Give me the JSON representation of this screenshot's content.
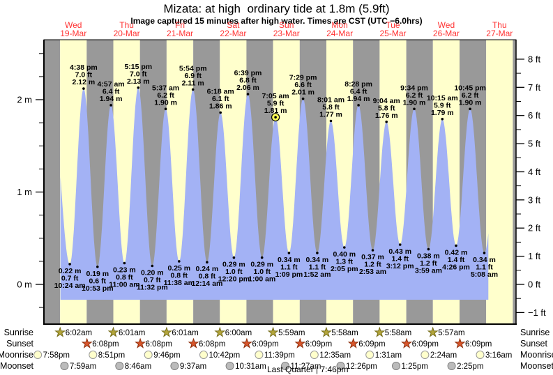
{
  "title": "Mizata: at high  ordinary tide at 1.8m (5.9ft)",
  "subtitle": "Image captured 15 minutes after high water. Times are CST (UTC −6.0hrs)",
  "chart_data": {
    "type": "area",
    "title": "Mizata: at high  ordinary tide at 1.8m (5.9ft)",
    "ylabel_left": "m",
    "ylabel_right": "ft",
    "ylim_m": [
      -0.42,
      2.65
    ],
    "grid": false,
    "legend": "none",
    "days": [
      {
        "dow": "Wed",
        "date": "19-Mar"
      },
      {
        "dow": "Thu",
        "date": "20-Mar"
      },
      {
        "dow": "Fri",
        "date": "21-Mar"
      },
      {
        "dow": "Sat",
        "date": "22-Mar"
      },
      {
        "dow": "Sun",
        "date": "23-Mar"
      },
      {
        "dow": "Mon",
        "date": "24-Mar"
      },
      {
        "dow": "Tue",
        "date": "25-Mar"
      },
      {
        "dow": "Wed",
        "date": "26-Mar"
      },
      {
        "dow": "Thu",
        "date": "27-Mar"
      }
    ],
    "highs": [
      {
        "time": "4:38 pm",
        "ft": "7.0",
        "m": "2.12",
        "day": 0
      },
      {
        "time": "4:57 am",
        "ft": "6.4",
        "m": "1.94",
        "day": 1
      },
      {
        "time": "5:15 pm",
        "ft": "7.0",
        "m": "2.13",
        "day": 1
      },
      {
        "time": "5:37 am",
        "ft": "6.2",
        "m": "1.90",
        "day": 2
      },
      {
        "time": "5:54 pm",
        "ft": "6.9",
        "m": "2.11",
        "day": 2
      },
      {
        "time": "6:18 am",
        "ft": "6.1",
        "m": "1.86",
        "day": 3
      },
      {
        "time": "6:39 pm",
        "ft": "6.8",
        "m": "2.06",
        "day": 3
      },
      {
        "time": "7:05 am",
        "ft": "5.9",
        "m": "1.81",
        "day": 4,
        "current": true
      },
      {
        "time": "7:29 pm",
        "ft": "6.6",
        "m": "2.01",
        "day": 4
      },
      {
        "time": "8:01 am",
        "ft": "5.8",
        "m": "1.77",
        "day": 5
      },
      {
        "time": "8:28 pm",
        "ft": "6.4",
        "m": "1.94",
        "day": 5
      },
      {
        "time": "9:04 am",
        "ft": "5.8",
        "m": "1.76",
        "day": 6
      },
      {
        "time": "9:34 pm",
        "ft": "6.2",
        "m": "1.90",
        "day": 6
      },
      {
        "time": "10:15 am",
        "ft": "5.9",
        "m": "1.79",
        "day": 7
      },
      {
        "time": "10:45 pm",
        "ft": "6.2",
        "m": "1.90",
        "day": 7
      }
    ],
    "lows": [
      {
        "m": "0.22",
        "ft": "0.7",
        "time": "10:24 am",
        "day": 0
      },
      {
        "m": "0.19",
        "ft": "0.6",
        "time": "10:53 pm",
        "day": 0
      },
      {
        "m": "0.23",
        "ft": "0.8",
        "time": "11:00 am",
        "day": 1
      },
      {
        "m": "0.20",
        "ft": "0.7",
        "time": "11:32 pm",
        "day": 1
      },
      {
        "m": "0.25",
        "ft": "0.8",
        "time": "11:38 am",
        "day": 2
      },
      {
        "m": "0.24",
        "ft": "0.8",
        "time": "12:14 am",
        "day": 3
      },
      {
        "m": "0.29",
        "ft": "1.0",
        "time": "12:20 pm",
        "day": 3
      },
      {
        "m": "0.29",
        "ft": "1.0",
        "time": "1:00 am",
        "day": 4
      },
      {
        "m": "0.34",
        "ft": "1.1",
        "time": "1:09 pm",
        "day": 4
      },
      {
        "m": "0.34",
        "ft": "1.1",
        "time": "1:52 am",
        "day": 5
      },
      {
        "m": "0.40",
        "ft": "1.3",
        "time": "2:05 pm",
        "day": 5
      },
      {
        "m": "0.37",
        "ft": "1.2",
        "time": "2:53 am",
        "day": 6
      },
      {
        "m": "0.43",
        "ft": "1.4",
        "time": "3:12 pm",
        "day": 6
      },
      {
        "m": "0.38",
        "ft": "1.2",
        "time": "3:59 am",
        "day": 7
      },
      {
        "m": "0.42",
        "ft": "1.4",
        "time": "4:26 pm",
        "day": 7
      },
      {
        "m": "0.34",
        "ft": "1.1",
        "time": "5:08 am",
        "day": 8
      }
    ],
    "left_ticks": [
      {
        "v": 0,
        "label": "0 m"
      },
      {
        "v": 1,
        "label": "1 m"
      },
      {
        "v": 2,
        "label": "2 m"
      }
    ],
    "right_ticks": [
      {
        "v": 8,
        "label": "8 ft"
      },
      {
        "v": 7,
        "label": "7 ft"
      },
      {
        "v": 6,
        "label": "6 ft"
      },
      {
        "v": 5,
        "label": "5 ft"
      },
      {
        "v": 4,
        "label": "4 ft"
      },
      {
        "v": 3,
        "label": "3 ft"
      },
      {
        "v": 2,
        "label": "2 ft"
      },
      {
        "v": 1,
        "label": "1 ft"
      },
      {
        "v": 0,
        "label": "0 ft"
      },
      {
        "v": -1,
        "label": "−1 ft"
      }
    ],
    "colors": {
      "day_band": "#ffffcc",
      "night_band": "#999999",
      "tide_fill": "#a3b2f5",
      "day_label_red": "#ff3232",
      "current_marker": "#ffff55",
      "sunrise_star": "#b3a53b",
      "sunrise_star_stroke": "#756d1b",
      "sunset_star": "#d8552b",
      "sunset_star_stroke": "#8c2e0b",
      "moonrise_circle": "#ffffcc",
      "moonrise_circle_stroke": "#999999",
      "moonset_circle": "#bbbbbb",
      "moonset_circle_stroke": "#808080"
    }
  },
  "footer": {
    "rows": [
      {
        "label": "Sunrise",
        "icon": "star",
        "entries": [
          {
            "time": "6:02am",
            "day": 0
          },
          {
            "time": "6:01am",
            "day": 1
          },
          {
            "time": "6:01am",
            "day": 2
          },
          {
            "time": "6:00am",
            "day": 3
          },
          {
            "time": "5:59am",
            "day": 4
          },
          {
            "time": "5:58am",
            "day": 5
          },
          {
            "time": "5:58am",
            "day": 6
          },
          {
            "time": "5:57am",
            "day": 7
          }
        ]
      },
      {
        "label": "Sunset",
        "icon": "star",
        "entries": [
          {
            "time": "6:08pm",
            "day": 0
          },
          {
            "time": "6:08pm",
            "day": 1
          },
          {
            "time": "6:08pm",
            "day": 2
          },
          {
            "time": "6:09pm",
            "day": 3
          },
          {
            "time": "6:09pm",
            "day": 4
          },
          {
            "time": "6:09pm",
            "day": 5
          },
          {
            "time": "6:09pm",
            "day": 6
          },
          {
            "time": "6:09pm",
            "day": 7
          }
        ]
      },
      {
        "label": "Moonrise",
        "icon": "circle",
        "entries": [
          {
            "time": "7:58pm",
            "day": -1
          },
          {
            "time": "8:51pm",
            "day": 0
          },
          {
            "time": "9:46pm",
            "day": 1
          },
          {
            "time": "10:42pm",
            "day": 2
          },
          {
            "time": "11:39pm",
            "day": 3
          },
          {
            "time": "12:35am",
            "day": 5
          },
          {
            "time": "1:31am",
            "day": 6
          },
          {
            "time": "2:24am",
            "day": 7
          },
          {
            "time": "3:16am",
            "day": 8
          }
        ]
      },
      {
        "label": "Moonset",
        "icon": "circle",
        "entries": [
          {
            "time": "7:59am",
            "day": 0
          },
          {
            "time": "8:46am",
            "day": 1
          },
          {
            "time": "9:37am",
            "day": 2
          },
          {
            "time": "10:31am",
            "day": 3
          },
          {
            "time": "11:27am",
            "day": 4
          },
          {
            "time": "12:26pm",
            "day": 5
          },
          {
            "time": "1:25pm",
            "day": 6
          },
          {
            "time": "2:25pm",
            "day": 7
          }
        ]
      }
    ],
    "moon_phase": "Last Quarter | 7:46pm"
  }
}
